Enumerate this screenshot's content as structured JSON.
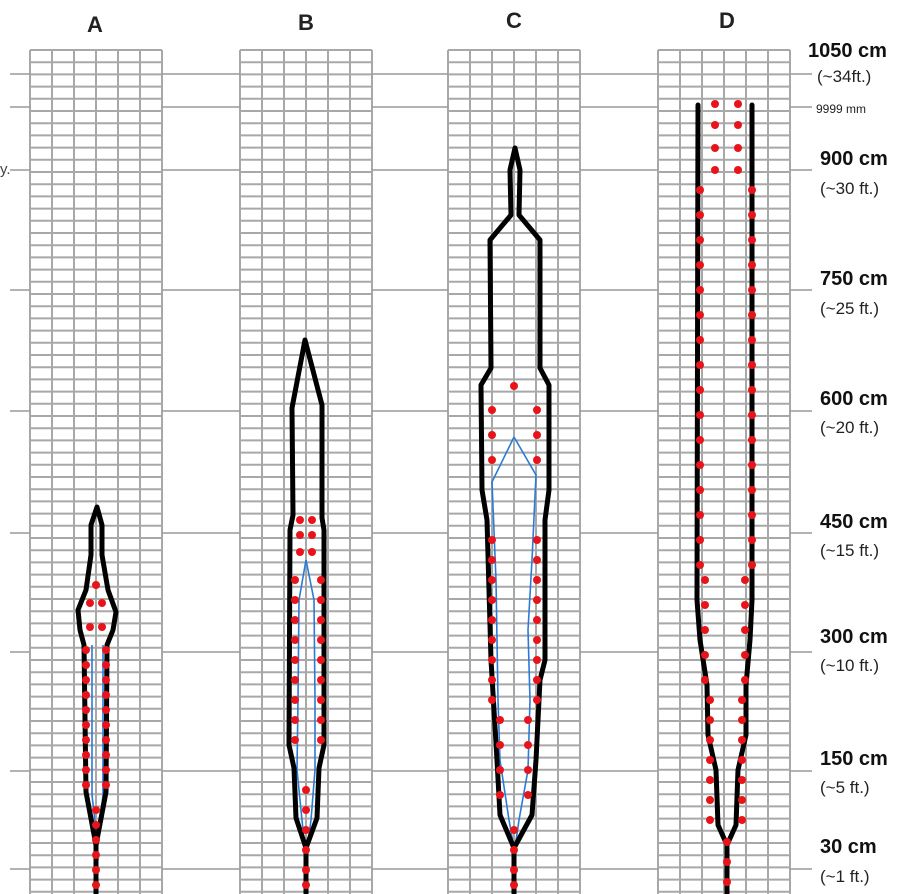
{
  "columns": [
    "A",
    "B",
    "C",
    "D"
  ],
  "height_labels": [
    {
      "cm": "1050 cm",
      "ft": "(~34ft.)"
    },
    {
      "cm": "",
      "ft": "9999 mm"
    },
    {
      "cm": "900 cm",
      "ft": "(~30 ft.)"
    },
    {
      "cm": "750 cm",
      "ft": "(~25 ft.)"
    },
    {
      "cm": "600 cm",
      "ft": "(~20 ft.)"
    },
    {
      "cm": "450 cm",
      "ft": "(~15 ft.)"
    },
    {
      "cm": "300 cm",
      "ft": "(~10 ft.)"
    },
    {
      "cm": "150 cm",
      "ft": "(~5 ft.)"
    },
    {
      "cm": "30 cm",
      "ft": "(~1 ft.)"
    }
  ],
  "cut_off_label": "y.",
  "colors": {
    "grid": "#a8a8a8",
    "outline": "#000000",
    "inner_line": "#2b7bd6",
    "dots": "#e8141c",
    "ref_line": "#9a9a9a"
  }
}
